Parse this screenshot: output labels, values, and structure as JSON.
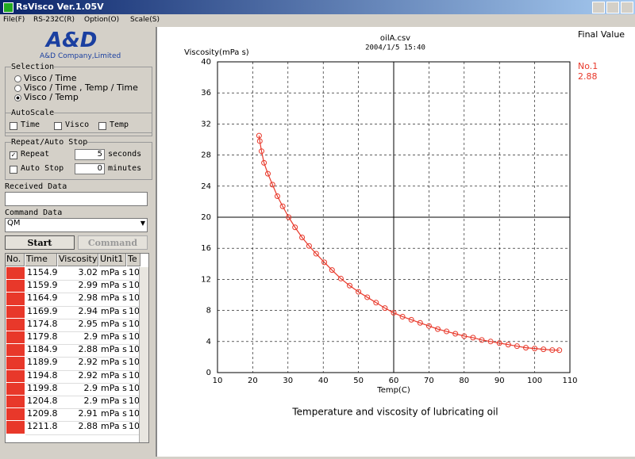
{
  "window": {
    "title": "RsVisco Ver.1.05V",
    "menu": [
      "File(F)",
      "RS-232C(R)",
      "Option(O)",
      "Scale(S)"
    ]
  },
  "sidebar": {
    "logo": "A&D",
    "company": "A&D Company,Limited",
    "selection": {
      "label": "Selection",
      "options": [
        "Visco / Time",
        "Visco / Time , Temp / Time",
        "Visco / Temp"
      ],
      "selected": 2
    },
    "autoscale": {
      "label": "AutoScale",
      "options": [
        {
          "text": "Time",
          "checked": false
        },
        {
          "text": "Visco",
          "checked": false
        },
        {
          "text": "Temp",
          "checked": false
        }
      ]
    },
    "repeat": {
      "label": "Repeat/Auto Stop",
      "repeat": "Repeat",
      "repeat_checked": true,
      "repeat_value": 5,
      "repeat_unit": "seconds",
      "autostop": "Auto Stop",
      "autostop_checked": false,
      "autostop_value": 0,
      "autostop_unit": "minutes"
    },
    "received_label": "Received Data",
    "command_label": "Command Data",
    "command_value": "QM",
    "start": "Start",
    "command_button": "Command"
  },
  "table": {
    "header": [
      "No.",
      "Time",
      "Viscosity",
      "Unit1",
      "Te"
    ],
    "rows": [
      [
        1154.9,
        3.02,
        "mPa s",
        "10"
      ],
      [
        1159.9,
        2.99,
        "mPa s",
        "10"
      ],
      [
        1164.9,
        2.98,
        "mPa s",
        "10"
      ],
      [
        1169.9,
        2.94,
        "mPa s",
        "10"
      ],
      [
        1174.8,
        2.95,
        "mPa s",
        "10"
      ],
      [
        1179.8,
        2.9,
        "mPa s",
        "10"
      ],
      [
        1184.9,
        2.88,
        "mPa s",
        "10"
      ],
      [
        1189.9,
        2.92,
        "mPa s",
        "10"
      ],
      [
        1194.8,
        2.92,
        "mPa s",
        "10"
      ],
      [
        1199.8,
        2.9,
        "mPa s",
        "10"
      ],
      [
        1204.8,
        2.9,
        "mPa s",
        "10"
      ],
      [
        1209.8,
        2.91,
        "mPa s",
        "10"
      ],
      [
        1211.8,
        2.88,
        "mPa s",
        "10"
      ]
    ]
  },
  "chart_data": {
    "type": "scatter",
    "title": "oilA.csv",
    "subtitle": "2004/1/5 15:40",
    "x_label": "Temp(C)",
    "y_label": "Viscosity(mPa s)",
    "legend_title": "Final Value",
    "caption": "Temperature and viscosity of lubricating oil",
    "grid": true,
    "xlim": [
      10,
      110
    ],
    "xticks": [
      10,
      20,
      30,
      40,
      50,
      60,
      70,
      80,
      90,
      100,
      110
    ],
    "ylim": [
      0,
      40
    ],
    "yticks": [
      0,
      4,
      8,
      12,
      16,
      20,
      24,
      28,
      32,
      36,
      40
    ],
    "series": [
      {
        "name": "No.1",
        "color": "#e8382a",
        "final_value": 2.88,
        "x": [
          21.8,
          22.0,
          22.5,
          23.2,
          24.3,
          25.6,
          27.0,
          28.5,
          30.2,
          32.0,
          34.0,
          36.0,
          38.0,
          40.3,
          42.5,
          45.0,
          47.5,
          50.0,
          52.5,
          55.0,
          57.5,
          60.0,
          62.5,
          65.0,
          67.5,
          70.0,
          72.5,
          75.0,
          77.5,
          80.0,
          82.5,
          85.0,
          87.5,
          90.0,
          92.5,
          95.0,
          97.5,
          100.0,
          102.5,
          105.0,
          107.0
        ],
        "values": [
          30.5,
          29.8,
          28.5,
          27.0,
          25.6,
          24.2,
          22.7,
          21.4,
          20.0,
          18.7,
          17.4,
          16.3,
          15.3,
          14.2,
          13.2,
          12.1,
          11.2,
          10.4,
          9.7,
          9.0,
          8.3,
          7.7,
          7.2,
          6.8,
          6.4,
          6.0,
          5.6,
          5.3,
          5.0,
          4.7,
          4.5,
          4.2,
          4.0,
          3.8,
          3.6,
          3.4,
          3.2,
          3.1,
          3.0,
          2.9,
          2.88
        ]
      }
    ]
  }
}
